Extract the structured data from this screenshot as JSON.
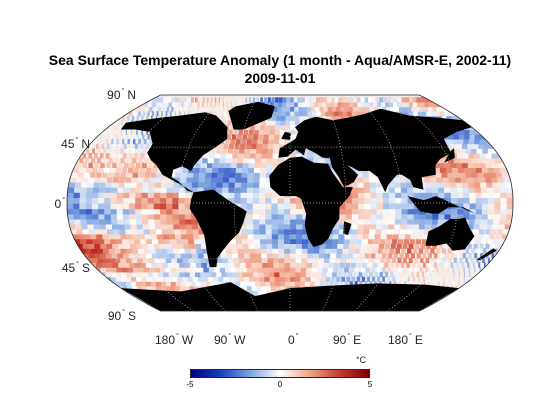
{
  "title": {
    "line1": "Sea Surface Temperature Anomaly (1 month - Aqua/AMSR-E, 2002-11)",
    "line2": "2009-11-01"
  },
  "map": {
    "projection": "robinson",
    "land_color": "#000000",
    "grid": true
  },
  "lat_labels": [
    {
      "value": "90",
      "hemi": "N"
    },
    {
      "value": "45",
      "hemi": "N"
    },
    {
      "value": "0",
      "hemi": ""
    },
    {
      "value": "45",
      "hemi": "S"
    },
    {
      "value": "90",
      "hemi": "S"
    }
  ],
  "lon_labels": [
    {
      "value": "180",
      "hemi": "W"
    },
    {
      "value": "90",
      "hemi": "W"
    },
    {
      "value": "0",
      "hemi": ""
    },
    {
      "value": "90",
      "hemi": "E"
    },
    {
      "value": "180",
      "hemi": "E"
    }
  ],
  "colorbar": {
    "min": -5,
    "max": 5,
    "ticks": [
      "-5",
      "0",
      "5"
    ],
    "unit": "°C",
    "colormap": [
      "#00007f",
      "#1b3fbf",
      "#7da4e0",
      "#ffffff",
      "#f0a58a",
      "#c93a2d",
      "#7f0000"
    ]
  }
}
